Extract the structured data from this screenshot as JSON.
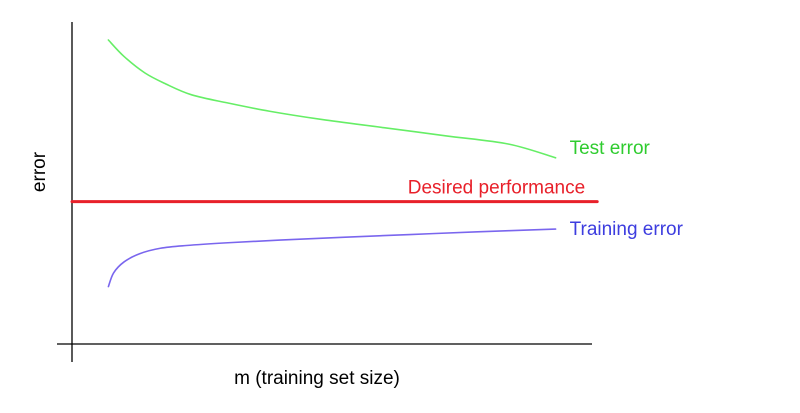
{
  "chart_data": {
    "type": "line",
    "title": "",
    "xlabel": "m (training set size)",
    "ylabel": "error",
    "grid": false,
    "legend": "none",
    "xlim": [
      0,
      100
    ],
    "ylim": [
      0,
      100
    ],
    "series": [
      {
        "name": "Test error",
        "color": "#66ee66",
        "x": [
          7,
          10,
          14,
          18,
          23,
          30,
          38,
          48,
          60,
          72,
          84,
          93
        ],
        "y": [
          100,
          94,
          88,
          84,
          80,
          77,
          74,
          71,
          68,
          65,
          62,
          57
        ]
      },
      {
        "name": "Training error",
        "color": "#7a66ee",
        "x": [
          7,
          8,
          10,
          13,
          17,
          22,
          30,
          40,
          52,
          65,
          78,
          93
        ],
        "y": [
          10,
          15,
          19,
          22,
          24,
          25,
          26,
          27,
          28,
          29,
          30,
          31
        ]
      },
      {
        "name": "Desired performance",
        "color": "#e8202a",
        "x": [
          0,
          101
        ],
        "y": [
          41,
          41
        ]
      }
    ]
  }
}
